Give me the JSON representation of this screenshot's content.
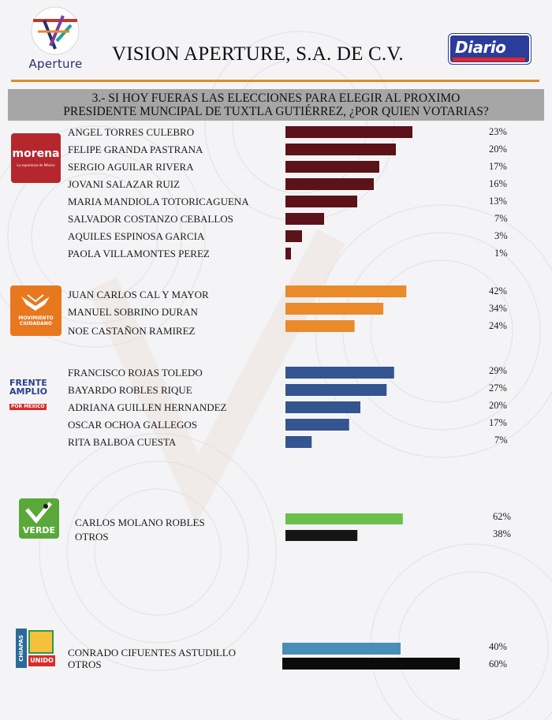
{
  "header": {
    "logo_text": "Aperture",
    "company_name": "VISION APERTURE, S.A. DE C.V.",
    "newspaper": "Diario"
  },
  "question": {
    "line1": "3.- SI HOY FUERAS LAS ELECCIONES PARA ELEGIR AL PROXIMO",
    "line2": "PRESIDENTE MUNCIPAL DE TUXTLA GUTIÉRREZ, ¿POR QUIEN VOTARIAS?"
  },
  "parties": {
    "morena": {
      "name": "morena",
      "tagline": "La esperanza de México",
      "color": "#b5272d"
    },
    "mc": {
      "name": "MOVIMIENTO CIUDADANO",
      "color": "#e8781e"
    },
    "frente": {
      "line1": "FRENTE",
      "line2": "AMPLIO",
      "line3": "POR MÉXICO"
    },
    "verde": {
      "name": "VERDE",
      "color": "#5aa83a"
    },
    "chiapas_unido": {
      "line1": "CHIAPAS",
      "line2": "UNIDO"
    }
  },
  "chart_data": [
    {
      "type": "bar",
      "group": "morena",
      "categories": [
        "ANGEL TORRES CULEBRO",
        "FELIPE GRANDA PASTRANA",
        "SERGIO AGUILAR RIVERA",
        "JOVANI SALAZAR RUIZ",
        "MARIA MANDIOLA TOTORICAGUENA",
        "SALVADOR COSTANZO CEBALLOS",
        "AQUILES ESPINOSA GARCIA",
        "PAOLA VILLAMONTES PEREZ"
      ],
      "values": [
        23,
        20,
        17,
        16,
        13,
        7,
        3,
        1
      ],
      "labels": [
        "23%",
        "20%",
        "17%",
        "16%",
        "13%",
        "7%",
        "3%",
        "1%"
      ],
      "colors": [
        "#5b1219"
      ]
    },
    {
      "type": "bar",
      "group": "mc",
      "categories": [
        "JUAN CARLOS CAL Y MAYOR",
        "MANUEL SOBRINO DURAN",
        "NOE CASTAÑON RAMIREZ"
      ],
      "values": [
        42,
        34,
        24
      ],
      "labels": [
        "42%",
        "34%",
        "24%"
      ],
      "colors": [
        "#ea8a2b"
      ]
    },
    {
      "type": "bar",
      "group": "frente",
      "categories": [
        "FRANCISCO ROJAS TOLEDO",
        "BAYARDO ROBLES RIQUE",
        "ADRIANA GUILLEN HERNANDEZ",
        "OSCAR OCHOA GALLEGOS",
        "RITA BALBOA CUESTA"
      ],
      "values": [
        29,
        27,
        20,
        17,
        7
      ],
      "labels": [
        "29%",
        "27%",
        "20%",
        "17%",
        "7%"
      ],
      "colors": [
        "#34558f"
      ]
    },
    {
      "type": "bar",
      "group": "verde",
      "categories": [
        "CARLOS MOLANO ROBLES",
        "OTROS"
      ],
      "values": [
        62,
        38
      ],
      "labels": [
        "62%",
        "38%"
      ],
      "colors": [
        "#6bbf4a",
        "#161616"
      ]
    },
    {
      "type": "bar",
      "group": "chiapas_unido",
      "categories": [
        "CONRADO CIFUENTES ASTUDILLO",
        "OTROS"
      ],
      "values": [
        40,
        60
      ],
      "labels": [
        "40%",
        "60%"
      ],
      "colors": [
        "#4a8db7",
        "#0b0b0b"
      ]
    }
  ]
}
